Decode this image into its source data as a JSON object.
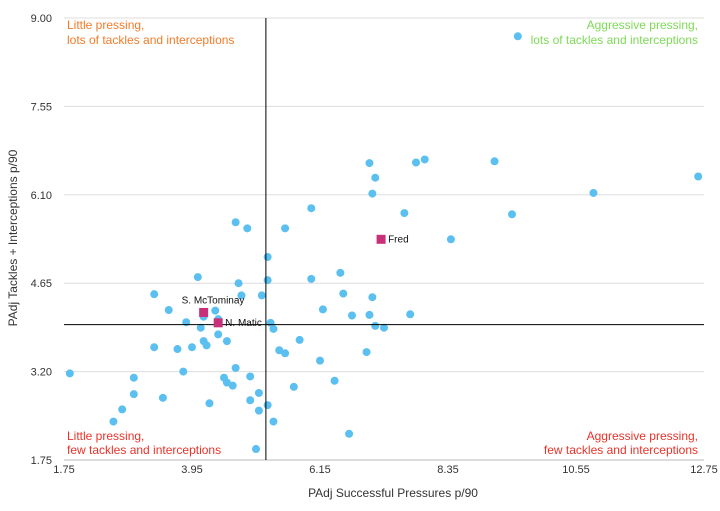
{
  "chart_data": {
    "type": "scatter",
    "title": "",
    "xlabel": "PAdj Successful Pressures p/90",
    "ylabel": "PAdj Tackles + Interceptions p/90",
    "xlim": [
      1.75,
      12.75
    ],
    "ylim": [
      1.75,
      9.0
    ],
    "x_ticks": [
      "1.75",
      "3.95",
      "6.15",
      "8.35",
      "10.55",
      "12.75"
    ],
    "y_ticks": [
      "9.00",
      "7.55",
      "6.10",
      "4.65",
      "3.20",
      "1.75"
    ],
    "x_tick_values": [
      1.75,
      3.95,
      6.15,
      8.35,
      10.55,
      12.75
    ],
    "y_tick_values": [
      9.0,
      7.55,
      6.1,
      4.65,
      3.2,
      1.75
    ],
    "reference_lines": {
      "x": 5.22,
      "y": 3.97
    },
    "colors": {
      "points": "#5bc0f0",
      "highlight": "#c8307a",
      "top_left": "#f07c2a",
      "top_right": "#7ed957",
      "bottom": "#e8332a",
      "grid": "#dddddd"
    },
    "quadrant_labels": {
      "top_left": [
        "Little pressing,",
        "lots of tackles and interceptions"
      ],
      "top_right": [
        "Aggressive pressing,",
        "lots of tackles and interceptions"
      ],
      "bottom_left": [
        "Little pressing,",
        "few tackles and interceptions"
      ],
      "bottom_right": [
        "Aggressive pressing,",
        "few tackles and interceptions"
      ]
    },
    "points": [
      [
        9.55,
        8.7
      ],
      [
        12.65,
        6.4
      ],
      [
        10.85,
        6.13
      ],
      [
        9.15,
        6.65
      ],
      [
        9.45,
        5.78
      ],
      [
        7.95,
        6.68
      ],
      [
        7.8,
        6.63
      ],
      [
        7.0,
        6.62
      ],
      [
        7.1,
        6.38
      ],
      [
        7.05,
        6.12
      ],
      [
        8.4,
        5.37
      ],
      [
        7.6,
        5.8
      ],
      [
        6.0,
        5.88
      ],
      [
        5.55,
        5.55
      ],
      [
        4.7,
        5.65
      ],
      [
        4.9,
        5.55
      ],
      [
        5.25,
        5.08
      ],
      [
        4.05,
        4.75
      ],
      [
        4.75,
        4.65
      ],
      [
        5.25,
        4.7
      ],
      [
        5.15,
        4.45
      ],
      [
        4.8,
        4.45
      ],
      [
        6.0,
        4.72
      ],
      [
        6.5,
        4.82
      ],
      [
        6.55,
        4.48
      ],
      [
        3.3,
        4.47
      ],
      [
        7.05,
        4.42
      ],
      [
        3.55,
        4.21
      ],
      [
        4.35,
        4.2
      ],
      [
        4.15,
        4.1
      ],
      [
        3.85,
        4.01
      ],
      [
        4.1,
        3.92
      ],
      [
        4.4,
        4.06
      ],
      [
        6.2,
        4.22
      ],
      [
        6.7,
        4.12
      ],
      [
        7.0,
        4.13
      ],
      [
        7.7,
        4.14
      ],
      [
        5.3,
        4.0
      ],
      [
        5.35,
        3.9
      ],
      [
        7.1,
        3.95
      ],
      [
        7.25,
        3.92
      ],
      [
        4.15,
        3.7
      ],
      [
        4.55,
        3.7
      ],
      [
        4.4,
        3.81
      ],
      [
        4.2,
        3.63
      ],
      [
        3.95,
        3.6
      ],
      [
        3.7,
        3.57
      ],
      [
        3.3,
        3.6
      ],
      [
        5.8,
        3.72
      ],
      [
        5.45,
        3.55
      ],
      [
        5.55,
        3.5
      ],
      [
        6.95,
        3.52
      ],
      [
        6.15,
        3.38
      ],
      [
        3.8,
        3.2
      ],
      [
        4.7,
        3.26
      ],
      [
        4.5,
        3.1
      ],
      [
        4.95,
        3.12
      ],
      [
        4.55,
        3.02
      ],
      [
        4.65,
        2.97
      ],
      [
        6.4,
        3.05
      ],
      [
        5.7,
        2.95
      ],
      [
        2.95,
        3.1
      ],
      [
        2.95,
        2.83
      ],
      [
        1.85,
        3.17
      ],
      [
        3.45,
        2.77
      ],
      [
        5.1,
        2.85
      ],
      [
        4.25,
        2.68
      ],
      [
        4.95,
        2.73
      ],
      [
        5.25,
        2.65
      ],
      [
        5.1,
        2.56
      ],
      [
        2.75,
        2.58
      ],
      [
        2.6,
        2.38
      ],
      [
        5.35,
        2.38
      ],
      [
        6.65,
        2.18
      ],
      [
        5.05,
        1.93
      ]
    ],
    "highlighted": [
      {
        "name": "Fred",
        "x": 7.2,
        "y": 5.37
      },
      {
        "name": "S. McTominay",
        "x": 4.15,
        "y": 4.17
      },
      {
        "name": "N. Matic",
        "x": 4.4,
        "y": 4.0
      }
    ]
  }
}
